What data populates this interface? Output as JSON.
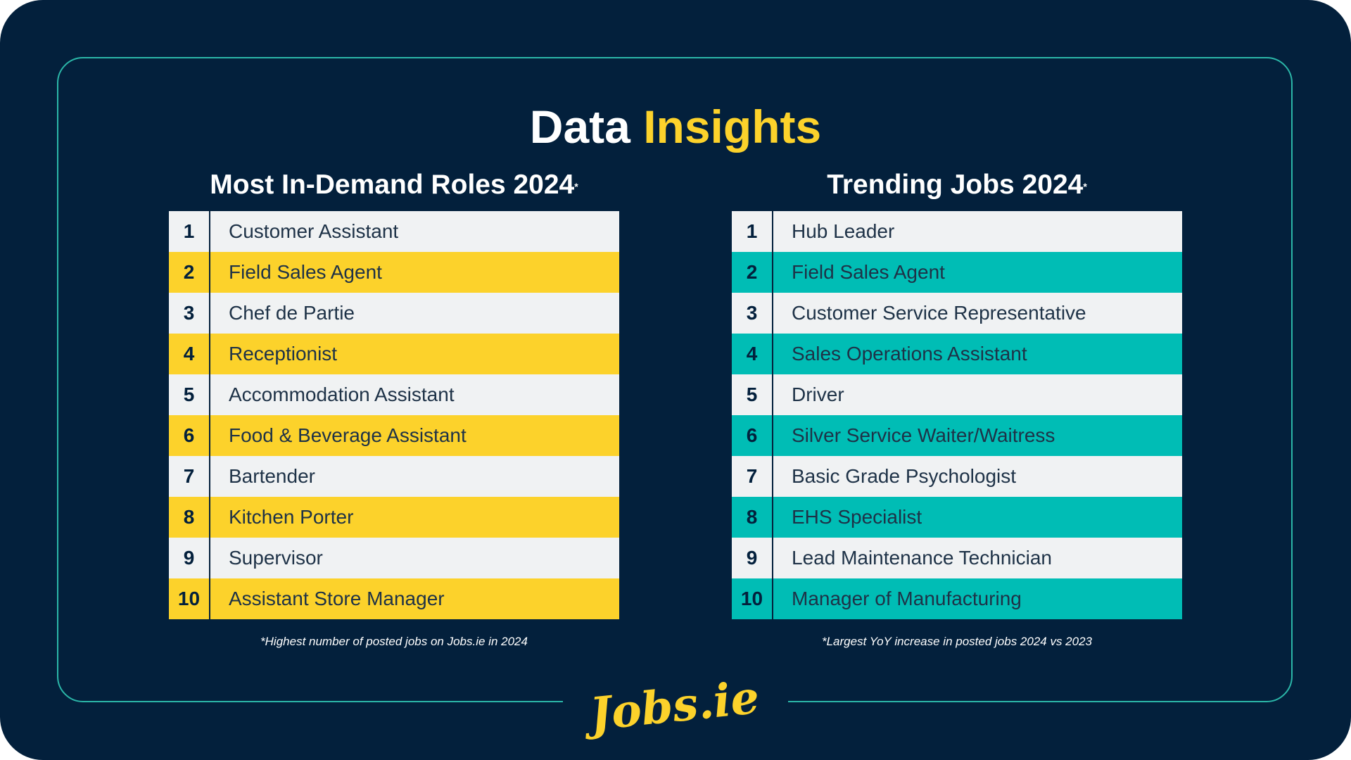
{
  "title": {
    "part1": "Data",
    "part2": "Insights"
  },
  "left": {
    "heading": "Most In-Demand Roles 2024",
    "heading_mark": "*",
    "rows": [
      {
        "rank": "1",
        "role": "Customer Assistant"
      },
      {
        "rank": "2",
        "role": "Field Sales Agent"
      },
      {
        "rank": "3",
        "role": "Chef de Partie"
      },
      {
        "rank": "4",
        "role": "Receptionist"
      },
      {
        "rank": "5",
        "role": "Accommodation Assistant"
      },
      {
        "rank": "6",
        "role": "Food & Beverage Assistant"
      },
      {
        "rank": "7",
        "role": "Bartender"
      },
      {
        "rank": "8",
        "role": "Kitchen Porter"
      },
      {
        "rank": "9",
        "role": "Supervisor"
      },
      {
        "rank": "10",
        "role": "Assistant Store Manager"
      }
    ],
    "footnote": "*Highest number of posted jobs on Jobs.ie in 2024"
  },
  "right": {
    "heading": "Trending Jobs 2024",
    "heading_mark": "*",
    "rows": [
      {
        "rank": "1",
        "role": "Hub Leader"
      },
      {
        "rank": "2",
        "role": "Field Sales Agent"
      },
      {
        "rank": "3",
        "role": "Customer Service Representative"
      },
      {
        "rank": "4",
        "role": "Sales Operations Assistant"
      },
      {
        "rank": "5",
        "role": "Driver"
      },
      {
        "rank": "6",
        "role": "Silver Service Waiter/Waitress"
      },
      {
        "rank": "7",
        "role": "Basic Grade Psychologist"
      },
      {
        "rank": "8",
        "role": "EHS Specialist"
      },
      {
        "rank": "9",
        "role": "Lead Maintenance Technician"
      },
      {
        "rank": "10",
        "role": "Manager of Manufacturing"
      }
    ],
    "footnote": "*Largest YoY increase in posted jobs 2024 vs 2023"
  },
  "logo": {
    "text": "Jobs.ie"
  },
  "colors": {
    "background": "#03203c",
    "accent_yellow": "#fcd22b",
    "accent_teal": "#00bdb5",
    "row_light": "#f0f2f3",
    "frame": "#2bb6a8"
  }
}
